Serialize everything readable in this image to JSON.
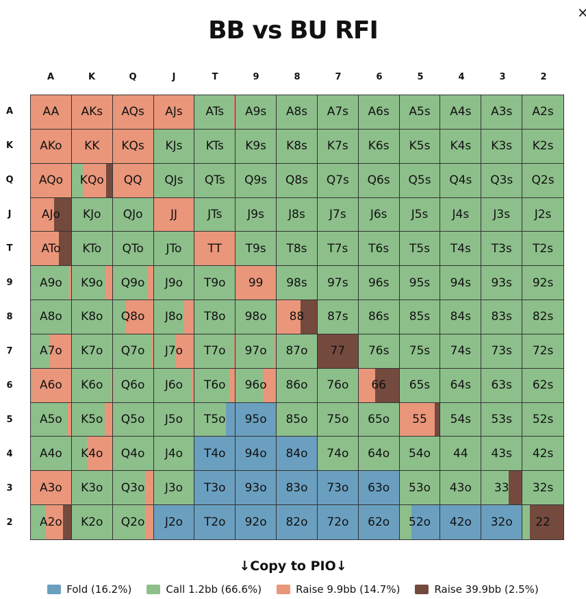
{
  "title": "BB vs BU RFI",
  "close_icon": "×",
  "copy_button": "↓Copy to PIO↓",
  "ranks": [
    "A",
    "K",
    "Q",
    "J",
    "T",
    "9",
    "8",
    "7",
    "6",
    "5",
    "4",
    "3",
    "2"
  ],
  "colors": {
    "fold": "#6a9fc0",
    "call": "#8dbf8b",
    "raise_small": "#ea967a",
    "raise_large": "#744a3e"
  },
  "legend": [
    {
      "action": "fold",
      "label": "Fold (16.2%)"
    },
    {
      "action": "call",
      "label": "Call 1.2bb (66.6%)"
    },
    {
      "action": "raise_small",
      "label": "Raise 9.9bb (14.7%)"
    },
    {
      "action": "raise_large",
      "label": "Raise 39.9bb (2.5%)"
    }
  ],
  "cells": {
    "AA": [
      [
        "raise_small",
        100
      ]
    ],
    "AKs": [
      [
        "raise_small",
        100
      ]
    ],
    "AQs": [
      [
        "raise_small",
        100
      ]
    ],
    "AJs": [
      [
        "raise_small",
        100
      ]
    ],
    "ATs": [
      [
        "call",
        96
      ],
      [
        "raise_small",
        4
      ]
    ],
    "AKo": [
      [
        "raise_small",
        100
      ]
    ],
    "KK": [
      [
        "raise_small",
        100
      ]
    ],
    "KQs": [
      [
        "raise_small",
        100
      ]
    ],
    "AQo": [
      [
        "raise_small",
        100
      ]
    ],
    "KQo": [
      [
        "call",
        27
      ],
      [
        "raise_small",
        58
      ],
      [
        "raise_large",
        15
      ]
    ],
    "QQ": [
      [
        "raise_small",
        100
      ]
    ],
    "AJo": [
      [
        "raise_small",
        58
      ],
      [
        "raise_large",
        42
      ]
    ],
    "JJ": [
      [
        "raise_small",
        100
      ]
    ],
    "ATo": [
      [
        "raise_small",
        70
      ],
      [
        "raise_large",
        30
      ]
    ],
    "TT": [
      [
        "raise_small",
        100
      ]
    ],
    "A9o": [
      [
        "call",
        97
      ],
      [
        "raise_small",
        3
      ]
    ],
    "K9o": [
      [
        "call",
        83
      ],
      [
        "raise_small",
        17
      ]
    ],
    "Q9o": [
      [
        "call",
        86
      ],
      [
        "raise_small",
        14
      ]
    ],
    "99": [
      [
        "raise_small",
        100
      ]
    ],
    "Q8o": [
      [
        "call",
        33
      ],
      [
        "raise_small",
        67
      ]
    ],
    "J8o": [
      [
        "call",
        75
      ],
      [
        "raise_small",
        25
      ]
    ],
    "88": [
      [
        "raise_small",
        60
      ],
      [
        "raise_large",
        40
      ]
    ],
    "A7o": [
      [
        "call",
        47
      ],
      [
        "raise_small",
        53
      ]
    ],
    "Q7o": [
      [
        "call",
        98
      ],
      [
        "raise_small",
        2
      ]
    ],
    "J7o": [
      [
        "call",
        55
      ],
      [
        "raise_small",
        45
      ]
    ],
    "T7o": [
      [
        "call",
        98
      ],
      [
        "raise_small",
        2
      ]
    ],
    "97o": [
      [
        "call",
        97
      ],
      [
        "raise_small",
        3
      ]
    ],
    "77": [
      [
        "raise_large",
        100
      ]
    ],
    "A6o": [
      [
        "call",
        4
      ],
      [
        "raise_small",
        96
      ]
    ],
    "K6o": [
      [
        "call",
        97
      ],
      [
        "raise_small",
        3
      ]
    ],
    "J6o": [
      [
        "call",
        93
      ],
      [
        "raise_small",
        7
      ]
    ],
    "T6o": [
      [
        "call",
        86
      ],
      [
        "raise_small",
        14
      ]
    ],
    "96o": [
      [
        "call",
        67
      ],
      [
        "raise_small",
        33
      ]
    ],
    "66": [
      [
        "raise_small",
        42
      ],
      [
        "raise_large",
        58
      ]
    ],
    "A5o": [
      [
        "call",
        92
      ],
      [
        "raise_small",
        8
      ]
    ],
    "K5o": [
      [
        "call",
        82
      ],
      [
        "raise_small",
        18
      ]
    ],
    "T5o": [
      [
        "call",
        78
      ],
      [
        "fold",
        22
      ]
    ],
    "95o": [
      [
        "fold",
        100
      ]
    ],
    "55": [
      [
        "raise_small",
        88
      ],
      [
        "raise_large",
        12
      ]
    ],
    "K4o": [
      [
        "call",
        37
      ],
      [
        "raise_small",
        63
      ]
    ],
    "T4o": [
      [
        "fold",
        100
      ]
    ],
    "94o": [
      [
        "fold",
        100
      ]
    ],
    "84o": [
      [
        "fold",
        100
      ]
    ],
    "A3o": [
      [
        "raise_small",
        100
      ]
    ],
    "Q3o": [
      [
        "call",
        80
      ],
      [
        "raise_small",
        20
      ]
    ],
    "T3o": [
      [
        "fold",
        100
      ]
    ],
    "93o": [
      [
        "fold",
        100
      ]
    ],
    "83o": [
      [
        "fold",
        100
      ]
    ],
    "73o": [
      [
        "fold",
        100
      ]
    ],
    "63o": [
      [
        "fold",
        100
      ]
    ],
    "33": [
      [
        "call",
        67
      ],
      [
        "raise_large",
        33
      ]
    ],
    "A2o": [
      [
        "call",
        37
      ],
      [
        "raise_small",
        43
      ],
      [
        "raise_large",
        20
      ]
    ],
    "Q2o": [
      [
        "call",
        80
      ],
      [
        "raise_small",
        20
      ]
    ],
    "J2o": [
      [
        "fold",
        100
      ]
    ],
    "T2o": [
      [
        "fold",
        100
      ]
    ],
    "92o": [
      [
        "fold",
        100
      ]
    ],
    "82o": [
      [
        "fold",
        100
      ]
    ],
    "72o": [
      [
        "fold",
        100
      ]
    ],
    "62o": [
      [
        "fold",
        100
      ]
    ],
    "52o": [
      [
        "call",
        30
      ],
      [
        "fold",
        70
      ]
    ],
    "42o": [
      [
        "fold",
        100
      ]
    ],
    "32o": [
      [
        "fold",
        100
      ]
    ],
    "22": [
      [
        "call",
        18
      ],
      [
        "raise_large",
        82
      ]
    ]
  },
  "default_action": "call"
}
